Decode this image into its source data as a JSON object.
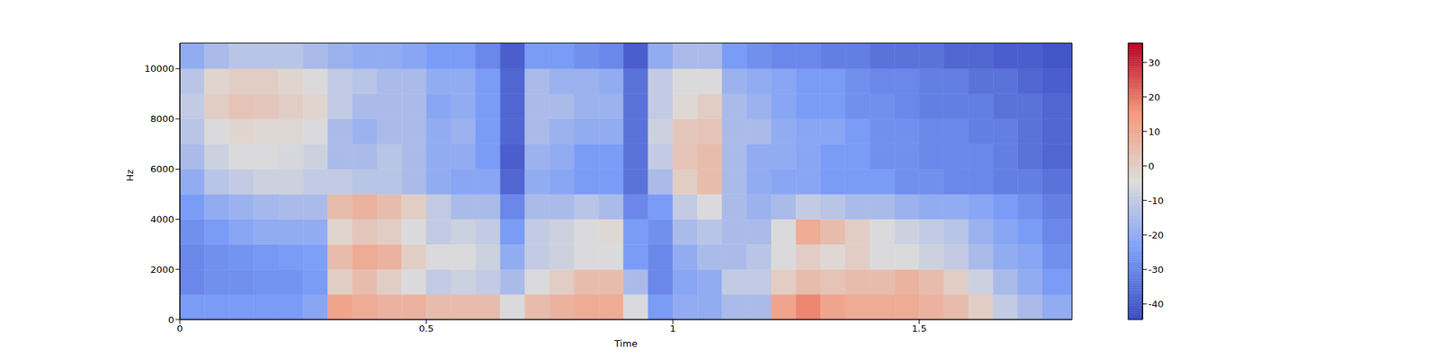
{
  "chart_data": {
    "type": "heatmap",
    "xlabel": "Time",
    "ylabel": "Hz",
    "color": "coolwarm",
    "xlim": [
      0,
      1.81
    ],
    "xticks": [
      0,
      0.5,
      1,
      1.5
    ],
    "ylim": [
      0,
      11025
    ],
    "yticks": [
      0,
      2000,
      4000,
      6000,
      8000,
      10000
    ],
    "time_bins": [
      0,
      0.05,
      0.1,
      0.15,
      0.2,
      0.25,
      0.3,
      0.35,
      0.4,
      0.45,
      0.5,
      0.55,
      0.6,
      0.65,
      0.7,
      0.75,
      0.8,
      0.85,
      0.9,
      0.95,
      1,
      1.05,
      1.1,
      1.15,
      1.2,
      1.25,
      1.3,
      1.35,
      1.4,
      1.45,
      1.5,
      1.55,
      1.6,
      1.65,
      1.7,
      1.75,
      1.81
    ],
    "freq_bins": [
      0,
      1000,
      2000,
      3000,
      4000,
      5000,
      6000,
      7000,
      8000,
      9000,
      10000,
      11025
    ],
    "values": [
      [
        -25,
        -30,
        -30,
        -28,
        -25,
        -20,
        -15,
        -12,
        -10,
        -12,
        -20
      ],
      [
        -25,
        -28,
        -28,
        -25,
        -20,
        -12,
        -8,
        -5,
        0,
        -2,
        -15
      ],
      [
        -25,
        -28,
        -27,
        -22,
        -18,
        -10,
        -5,
        -2,
        3,
        0,
        -12
      ],
      [
        -25,
        -27,
        -26,
        -20,
        -16,
        -8,
        -5,
        -3,
        2,
        0,
        -12
      ],
      [
        -25,
        -27,
        -25,
        -20,
        -15,
        -8,
        -6,
        -3,
        0,
        -2,
        -12
      ],
      [
        -22,
        -25,
        -24,
        -20,
        -15,
        -10,
        -8,
        -5,
        -2,
        -5,
        -15
      ],
      [
        12,
        0,
        5,
        -2,
        5,
        -10,
        -15,
        -15,
        -10,
        -10,
        -18
      ],
      [
        10,
        5,
        10,
        2,
        8,
        -12,
        -15,
        -18,
        -15,
        -12,
        -20
      ],
      [
        8,
        0,
        8,
        0,
        5,
        -12,
        -12,
        -15,
        -15,
        -15,
        -20
      ],
      [
        8,
        -5,
        0,
        -5,
        0,
        -15,
        -15,
        -15,
        -15,
        -15,
        -22
      ],
      [
        5,
        -10,
        -5,
        -10,
        -10,
        -20,
        -20,
        -20,
        -22,
        -20,
        -25
      ],
      [
        5,
        -8,
        -5,
        -8,
        -15,
        -22,
        -20,
        -18,
        -20,
        -20,
        -25
      ],
      [
        5,
        -10,
        -8,
        -10,
        -15,
        -22,
        -25,
        -25,
        -25,
        -25,
        -30
      ],
      [
        -5,
        -15,
        -20,
        -25,
        -30,
        -38,
        -40,
        -38,
        -38,
        -38,
        -40
      ],
      [
        5,
        -5,
        -10,
        -10,
        -15,
        -20,
        -18,
        -15,
        -15,
        -15,
        -25
      ],
      [
        8,
        0,
        -8,
        -8,
        -15,
        -22,
        -20,
        -18,
        -15,
        -18,
        -25
      ],
      [
        10,
        5,
        -5,
        -5,
        -12,
        -25,
        -25,
        -20,
        -18,
        -18,
        -28
      ],
      [
        10,
        5,
        -5,
        -3,
        -15,
        -25,
        -25,
        -20,
        -18,
        -20,
        -30
      ],
      [
        -5,
        -15,
        -25,
        -25,
        -30,
        -35,
        -35,
        -35,
        -35,
        -35,
        -40
      ],
      [
        -25,
        -30,
        -30,
        -28,
        -25,
        -15,
        -10,
        -8,
        -10,
        -10,
        -20
      ],
      [
        -20,
        -22,
        -20,
        -15,
        -10,
        0,
        3,
        2,
        -3,
        -5,
        -15
      ],
      [
        -20,
        -20,
        -15,
        -12,
        -5,
        5,
        5,
        3,
        0,
        -5,
        -15
      ],
      [
        -15,
        -10,
        -15,
        -15,
        -15,
        -15,
        -15,
        -15,
        -15,
        -18,
        -25
      ],
      [
        -15,
        -10,
        -12,
        -15,
        -18,
        -20,
        -20,
        -15,
        -18,
        -20,
        -28
      ],
      [
        12,
        0,
        -5,
        -5,
        -15,
        -22,
        -20,
        -20,
        -22,
        -22,
        -30
      ],
      [
        18,
        5,
        0,
        10,
        -10,
        -22,
        -22,
        -22,
        -25,
        -25,
        -30
      ],
      [
        12,
        3,
        -3,
        5,
        -12,
        -25,
        -25,
        -22,
        -25,
        -25,
        -32
      ],
      [
        10,
        5,
        0,
        0,
        -15,
        -25,
        -25,
        -25,
        -28,
        -28,
        -32
      ],
      [
        10,
        5,
        -5,
        -5,
        -15,
        -25,
        -28,
        -28,
        -28,
        -30,
        -35
      ],
      [
        10,
        8,
        -5,
        -8,
        -18,
        -28,
        -28,
        -28,
        -30,
        -30,
        -35
      ],
      [
        8,
        5,
        -8,
        -10,
        -20,
        -28,
        -30,
        -30,
        -32,
        -32,
        -35
      ],
      [
        5,
        0,
        -10,
        -12,
        -20,
        -30,
        -30,
        -30,
        -32,
        -32,
        -38
      ],
      [
        0,
        -8,
        -15,
        -18,
        -22,
        -30,
        -30,
        -32,
        -32,
        -35,
        -38
      ],
      [
        -10,
        -15,
        -20,
        -22,
        -25,
        -32,
        -32,
        -32,
        -35,
        -35,
        -40
      ],
      [
        -15,
        -20,
        -22,
        -25,
        -28,
        -32,
        -35,
        -35,
        -35,
        -38,
        -40
      ],
      [
        -20,
        -25,
        -28,
        -30,
        -32,
        -35,
        -38,
        -38,
        -38,
        -40,
        -42
      ]
    ],
    "colorbar": {
      "range": [
        -44.5,
        35.6
      ],
      "ticks": [
        -40,
        -30,
        -20,
        -10,
        0,
        10,
        20,
        30
      ]
    }
  }
}
